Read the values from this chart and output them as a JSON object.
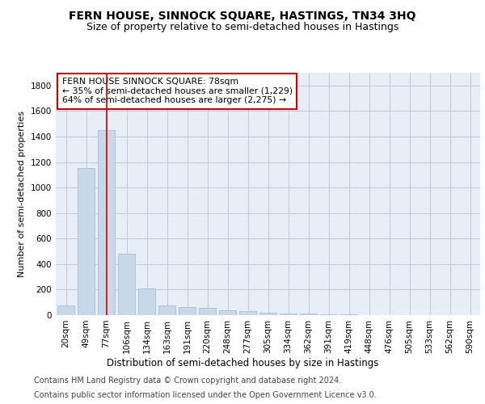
{
  "title": "FERN HOUSE, SINNOCK SQUARE, HASTINGS, TN34 3HQ",
  "subtitle": "Size of property relative to semi-detached houses in Hastings",
  "xlabel": "Distribution of semi-detached houses by size in Hastings",
  "ylabel": "Number of semi-detached properties",
  "categories": [
    "20sqm",
    "49sqm",
    "77sqm",
    "106sqm",
    "134sqm",
    "163sqm",
    "191sqm",
    "220sqm",
    "248sqm",
    "277sqm",
    "305sqm",
    "334sqm",
    "362sqm",
    "391sqm",
    "419sqm",
    "448sqm",
    "476sqm",
    "505sqm",
    "533sqm",
    "562sqm",
    "590sqm"
  ],
  "values": [
    75,
    1150,
    1450,
    480,
    210,
    75,
    65,
    55,
    40,
    30,
    20,
    15,
    10,
    6,
    4,
    3,
    2,
    2,
    1,
    1,
    1
  ],
  "bar_color": "#c8d8e8",
  "bar_edge_color": "#a0b8d0",
  "marker_index": 2,
  "marker_color": "#cc0000",
  "ylim": [
    0,
    1900
  ],
  "yticks": [
    0,
    200,
    400,
    600,
    800,
    1000,
    1200,
    1400,
    1600,
    1800
  ],
  "annotation_title": "FERN HOUSE SINNOCK SQUARE: 78sqm",
  "annotation_line1": "← 35% of semi-detached houses are smaller (1,229)",
  "annotation_line2": "64% of semi-detached houses are larger (2,275) →",
  "annotation_box_color": "#ffffff",
  "annotation_box_edge": "#cc0000",
  "footer_line1": "Contains HM Land Registry data © Crown copyright and database right 2024.",
  "footer_line2": "Contains public sector information licensed under the Open Government Licence v3.0.",
  "grid_color": "#c0c8d8",
  "background_color": "#e8eef8",
  "title_fontsize": 10,
  "subtitle_fontsize": 9,
  "tick_fontsize": 7.5,
  "ylabel_fontsize": 8,
  "xlabel_fontsize": 8.5,
  "footer_fontsize": 7,
  "annotation_fontsize": 7.8
}
